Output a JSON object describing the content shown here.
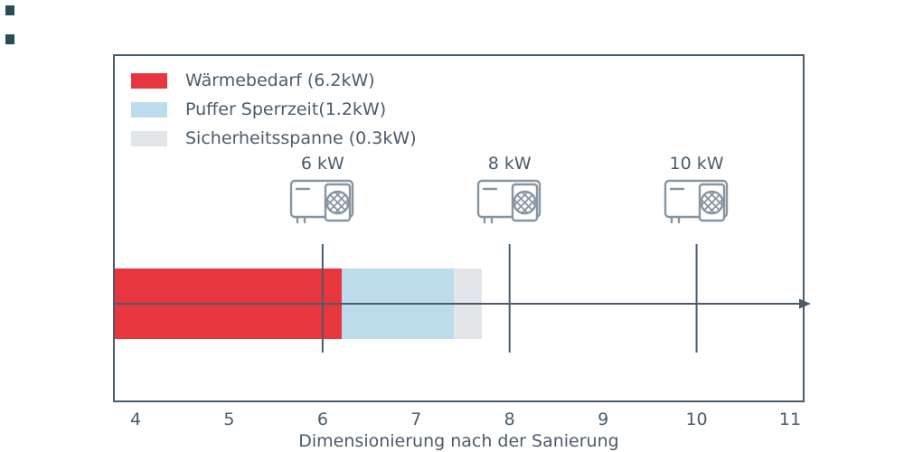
{
  "chart_data": {
    "type": "bar",
    "orientation": "horizontal",
    "title": "",
    "xlabel": "Dimensionierung nach der Sanierung",
    "ylabel": "",
    "xlim": [
      3.758,
      11.155
    ],
    "x_tick_values": [
      4,
      5,
      6,
      7,
      8,
      9,
      10,
      11
    ],
    "grid": false,
    "legend_position": "upper-left",
    "axis_arrow": true,
    "segments": [
      {
        "label": "Wärmebedarf (6.2kW)",
        "value_kw": 6.2,
        "start": 3.758,
        "end": 6.2,
        "color": "#e8363f"
      },
      {
        "label": "Puffer Sperrzeit(1.2kW)",
        "value_kw": 1.2,
        "start": 6.2,
        "end": 7.4,
        "color": "#bcdcec"
      },
      {
        "label": "Sicherheitsspanne (0.3kW)",
        "value_kw": 0.3,
        "start": 7.4,
        "end": 7.7,
        "color": "#e3e6e9"
      }
    ],
    "markers": [
      {
        "label": "6 kW",
        "value": 6,
        "icon": "heat-pump-icon"
      },
      {
        "label": "8 kW",
        "value": 8,
        "icon": "heat-pump-icon"
      },
      {
        "label": "10 kW",
        "value": 10,
        "icon": "heat-pump-icon"
      }
    ]
  },
  "colors": {
    "axis": "#4b5b6b",
    "text": "#4b5b6b",
    "icon_stroke": "#8795a0",
    "background": "#ffffff",
    "corner_mark": "#2a4d52"
  }
}
